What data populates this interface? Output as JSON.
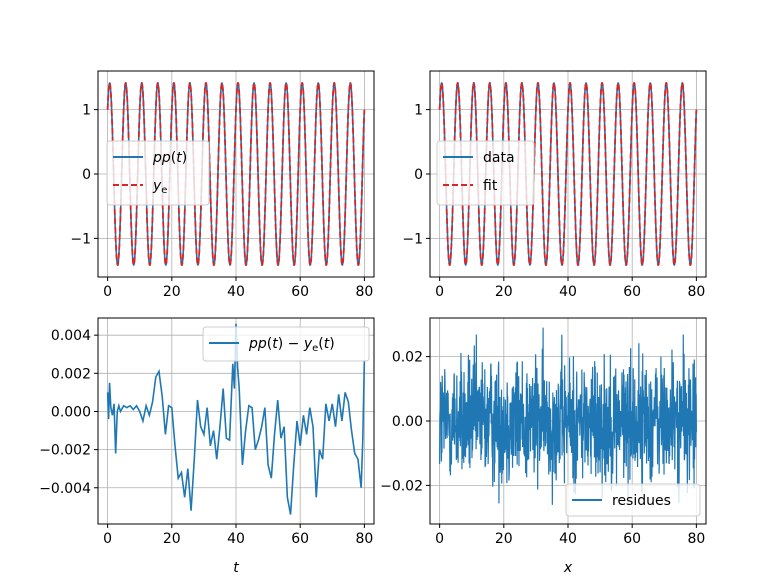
{
  "chart_data": [
    {
      "type": "line",
      "title": "",
      "xlabel": "",
      "ylabel": "",
      "xlim": [
        -3,
        83
      ],
      "ylim": [
        -1.6,
        1.6
      ],
      "xticks": [
        0,
        20,
        40,
        60,
        80
      ],
      "xtick_labels": [
        "0",
        "20",
        "40",
        "60",
        "80"
      ],
      "yticks": [
        -1,
        0,
        1
      ],
      "ytick_labels": [
        "−1",
        "0",
        "1"
      ],
      "grid": true,
      "legend_position": "center-left",
      "series": [
        {
          "name": "pp(t)",
          "color": "#1f77b4",
          "style": "solid",
          "function": "sinusoid",
          "amplitude": 1.414,
          "frequency": 0.2,
          "phase": 0.785,
          "x_range": [
            0,
            80
          ]
        },
        {
          "name": "y_e",
          "color": "#d62728",
          "style": "dashed",
          "function": "sinusoid",
          "amplitude": 1.414,
          "frequency": 0.2,
          "phase": 0.785,
          "x_range": [
            0,
            80
          ]
        }
      ]
    },
    {
      "type": "line",
      "title": "",
      "xlabel": "",
      "ylabel": "",
      "xlim": [
        -3,
        83
      ],
      "ylim": [
        -1.6,
        1.6
      ],
      "xticks": [
        0,
        20,
        40,
        60,
        80
      ],
      "xtick_labels": [
        "0",
        "20",
        "40",
        "60",
        "80"
      ],
      "yticks": [
        -1,
        0,
        1
      ],
      "ytick_labels": [
        "−1",
        "0",
        "1"
      ],
      "grid": true,
      "legend_position": "center-left",
      "series": [
        {
          "name": "data",
          "color": "#1f77b4",
          "style": "solid",
          "function": "sinusoid",
          "amplitude": 1.414,
          "frequency": 0.2,
          "phase": 0.785,
          "x_range": [
            0,
            80
          ]
        },
        {
          "name": "fit",
          "color": "#d62728",
          "style": "dashed",
          "function": "sinusoid",
          "amplitude": 1.414,
          "frequency": 0.2,
          "phase": 0.785,
          "x_range": [
            0,
            80
          ]
        }
      ]
    },
    {
      "type": "line",
      "title": "",
      "xlabel": "t",
      "ylabel": "",
      "xlim": [
        -3,
        83
      ],
      "ylim": [
        -0.0059,
        0.0049
      ],
      "xticks": [
        0,
        20,
        40,
        60,
        80
      ],
      "xtick_labels": [
        "0",
        "20",
        "40",
        "60",
        "80"
      ],
      "yticks": [
        -0.004,
        -0.002,
        0.0,
        0.002,
        0.004
      ],
      "ytick_labels": [
        "−0.004",
        "−0.002",
        "0.000",
        "0.002",
        "0.004"
      ],
      "grid": true,
      "legend_position": "upper right",
      "series": [
        {
          "name": "pp(t) − y_e(t)",
          "color": "#1f77b4",
          "x": [
            0,
            0.3,
            0.6,
            1,
            1.5,
            2,
            2.5,
            3,
            3.5,
            4,
            5,
            6,
            7,
            8,
            9,
            10,
            11,
            12,
            13,
            14,
            15,
            16,
            17,
            18,
            19,
            20,
            21,
            22,
            23,
            24,
            25,
            26,
            27,
            28,
            29,
            30,
            31,
            32,
            33,
            34,
            35,
            36,
            37,
            38,
            39,
            39.5,
            40,
            40.5,
            41,
            42,
            43,
            44,
            45,
            46,
            47,
            48,
            49,
            50,
            51,
            52,
            53,
            54,
            55,
            56,
            57,
            58,
            59,
            60,
            61,
            62,
            63,
            64,
            65,
            66,
            67,
            68,
            69,
            70,
            71,
            72,
            73,
            74,
            75,
            76,
            77,
            78,
            79,
            79.5,
            80
          ],
          "values": [
            0.001,
            -0.0004,
            0.0015,
            0.0002,
            -0.0002,
            0.0004,
            -0.0022,
            0.0,
            0.0003,
            0.0,
            0.0003,
            0.0002,
            0.0003,
            0.0001,
            0.0003,
            0.0,
            -0.0005,
            0.0003,
            -0.0002,
            0.0005,
            0.0018,
            0.0021,
            0.0008,
            -0.0012,
            0.0003,
            0.0002,
            -0.0018,
            -0.0035,
            -0.0032,
            -0.0045,
            -0.003,
            -0.0052,
            -0.0025,
            0.0006,
            -0.0008,
            -0.0012,
            0.0002,
            -0.0018,
            -0.001,
            -0.0025,
            -0.0008,
            0.0012,
            -0.0014,
            -0.0015,
            0.0025,
            0.0012,
            0.0046,
            0.0023,
            0.0012,
            -0.0028,
            -0.001,
            0.0003,
            0.0002,
            -0.002,
            -0.0015,
            -0.0008,
            0.0002,
            -0.0028,
            -0.0035,
            -0.0012,
            0.0006,
            -0.0014,
            -0.0008,
            -0.0045,
            -0.0054,
            -0.0028,
            -0.0005,
            -0.0018,
            -0.0002,
            -0.0012,
            0.0002,
            -0.0008,
            -0.0045,
            -0.002,
            -0.0025,
            0.0004,
            -0.0005,
            0.0004,
            -0.0008,
            0.0009,
            -0.0005,
            0.001,
            0.0005,
            -0.001,
            -0.0022,
            -0.0025,
            -0.004,
            -0.0015,
            0.0027
          ]
        }
      ]
    },
    {
      "type": "line",
      "title": "",
      "xlabel": "x",
      "ylabel": "",
      "xlim": [
        -3,
        83
      ],
      "ylim": [
        -0.032,
        0.032
      ],
      "xticks": [
        0,
        20,
        40,
        60,
        80
      ],
      "xtick_labels": [
        "0",
        "20",
        "40",
        "60",
        "80"
      ],
      "yticks": [
        -0.02,
        0.0,
        0.02
      ],
      "ytick_labels": [
        "−0.02",
        "0.00",
        "0.02"
      ],
      "grid": true,
      "legend_position": "lower right",
      "series": [
        {
          "name": "residues",
          "color": "#1f77b4",
          "function": "noise",
          "std": 0.01,
          "x_range": [
            0,
            80
          ],
          "y_range": [
            -0.03,
            0.029
          ]
        }
      ]
    }
  ]
}
